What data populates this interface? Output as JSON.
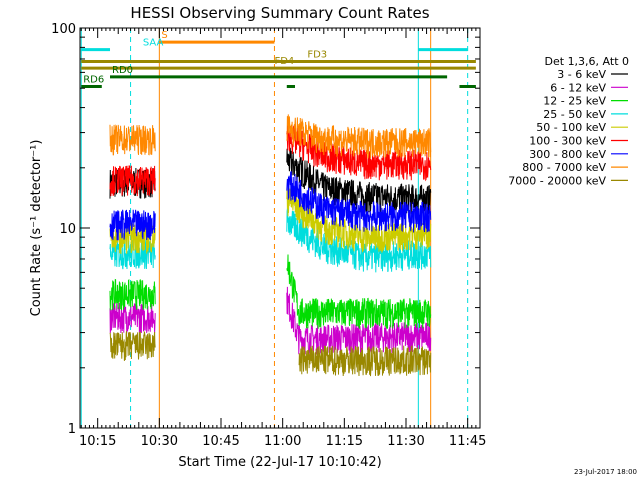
{
  "chart_data": {
    "type": "line",
    "title": "HESSI Observing Summary Count Rates",
    "xlabel": "Start Time (22-Jul-17 10:10:42)",
    "ylabel": "Count Rate (s⁻¹ detector⁻¹)",
    "yscale": "log",
    "ylim": [
      1,
      100
    ],
    "xlim": [
      "10:10:42",
      "11:48:00"
    ],
    "x_ticks": [
      "10:15",
      "10:30",
      "10:45",
      "11:00",
      "11:15",
      "11:30",
      "11:45"
    ],
    "y_ticks": [
      "1",
      "10",
      "100"
    ],
    "legend_title": "Det 1,3,6, Att 0",
    "legend_position": "right",
    "footer": "23-Jul-2017 18:00",
    "data_gaps": [
      [
        "10:11",
        "10:18"
      ],
      [
        "10:29",
        "11:01"
      ],
      [
        "11:36",
        "11:48"
      ]
    ],
    "series": [
      {
        "name": "3 - 6 keV",
        "color": "#000000",
        "segments": [
          {
            "x": [
              "10:18",
              "10:29"
            ],
            "y": [
              17,
              17
            ]
          },
          {
            "x": [
              "11:01",
              "11:10",
              "11:20",
              "11:36"
            ],
            "y": [
              22,
              16,
              14.5,
              14
            ]
          }
        ]
      },
      {
        "name": "6 - 12 keV",
        "color": "#cc00cc",
        "segments": [
          {
            "x": [
              "10:18",
              "10:29"
            ],
            "y": [
              3.6,
              3.6
            ]
          },
          {
            "x": [
              "11:01",
              "11:04",
              "11:36"
            ],
            "y": [
              4.5,
              2.8,
              2.9
            ]
          }
        ]
      },
      {
        "name": "12 - 25 keV",
        "color": "#00dd00",
        "segments": [
          {
            "x": [
              "10:18",
              "10:29"
            ],
            "y": [
              4.7,
              4.7
            ]
          },
          {
            "x": [
              "11:01",
              "11:04",
              "11:36"
            ],
            "y": [
              7,
              3.8,
              3.8
            ]
          }
        ]
      },
      {
        "name": "25 - 50 keV",
        "color": "#00dddd",
        "segments": [
          {
            "x": [
              "10:18",
              "10:29"
            ],
            "y": [
              7.5,
              7.5
            ]
          },
          {
            "x": [
              "11:01",
              "11:10",
              "11:20",
              "11:36"
            ],
            "y": [
              11,
              8,
              7.2,
              7.5
            ]
          }
        ]
      },
      {
        "name": "50 - 100 keV",
        "color": "#cccc00",
        "segments": [
          {
            "x": [
              "10:18",
              "10:29"
            ],
            "y": [
              9,
              9
            ]
          },
          {
            "x": [
              "11:01",
              "11:10",
              "11:20",
              "11:36"
            ],
            "y": [
              14,
              10,
              9,
              9.5
            ]
          }
        ]
      },
      {
        "name": "100 - 300 keV",
        "color": "#ff0000",
        "segments": [
          {
            "x": [
              "10:18",
              "10:29"
            ],
            "y": [
              17.5,
              17.5
            ]
          },
          {
            "x": [
              "11:01",
              "11:10",
              "11:20",
              "11:36"
            ],
            "y": [
              29,
              23,
              21,
              21
            ]
          }
        ]
      },
      {
        "name": "300 - 800 keV",
        "color": "#0000ff",
        "segments": [
          {
            "x": [
              "10:18",
              "10:29"
            ],
            "y": [
              10.5,
              10.5
            ]
          },
          {
            "x": [
              "11:01",
              "11:10",
              "11:20",
              "11:36"
            ],
            "y": [
              17,
              12.5,
              11.5,
              11.5
            ]
          }
        ]
      },
      {
        "name": "800 - 7000 keV",
        "color": "#ff8800",
        "segments": [
          {
            "x": [
              "10:18",
              "10:29"
            ],
            "y": [
              28,
              28
            ]
          },
          {
            "x": [
              "11:01",
              "11:10",
              "11:20",
              "11:36"
            ],
            "y": [
              32,
              28,
              27,
              27
            ]
          }
        ]
      },
      {
        "name": "7000 - 20000 keV",
        "color": "#998800",
        "segments": [
          {
            "x": [
              "10:18",
              "10:29"
            ],
            "y": [
              2.6,
              2.6
            ]
          },
          {
            "x": [
              "11:04",
              "11:36"
            ],
            "y": [
              2.2,
              2.2
            ]
          }
        ]
      }
    ],
    "flag_bars": [
      {
        "label": "S",
        "color": "#ff8800",
        "x": [
          "10:30",
          "10:58"
        ],
        "y": 85
      },
      {
        "label": "",
        "color": "#00dddd",
        "x": [
          "10:11",
          "10:18"
        ],
        "y": 78
      },
      {
        "label": "",
        "color": "#00dddd",
        "x": [
          "11:33",
          "11:45"
        ],
        "y": 78
      },
      {
        "label": "",
        "color": "#998800",
        "x": [
          "10:11",
          "11:47"
        ],
        "y": 68
      },
      {
        "label": "",
        "color": "#998800",
        "x": [
          "10:11",
          "11:47"
        ],
        "y": 63
      },
      {
        "label": "RD0",
        "color": "#006600",
        "x": [
          "10:18",
          "11:40"
        ],
        "y": 57
      },
      {
        "label": "RD6",
        "color": "#006600",
        "x": [
          "10:11",
          "10:16"
        ],
        "y": 51
      },
      {
        "label": "",
        "color": "#006600",
        "x": [
          "11:43",
          "11:47"
        ],
        "y": 51
      },
      {
        "label": "",
        "color": "#006600",
        "x": [
          "11:01",
          "11:03"
        ],
        "y": 51
      }
    ],
    "bar_labels": [
      {
        "text": "SAA",
        "color": "#00dddd",
        "x": "10:26",
        "y": 78
      },
      {
        "text": "FD3",
        "color": "#998800",
        "x": "11:06",
        "y": 68
      },
      {
        "text": "FD4",
        "color": "#998800",
        "x": "10:58",
        "y": 63
      }
    ],
    "vertical_markers": [
      {
        "x": "10:11",
        "color": "#00dddd",
        "style": "solid"
      },
      {
        "x": "10:23",
        "color": "#00dddd",
        "style": "dashed"
      },
      {
        "x": "10:30",
        "color": "#ff8800",
        "style": "solid"
      },
      {
        "x": "10:58",
        "color": "#ff8800",
        "style": "dashed"
      },
      {
        "x": "11:33",
        "color": "#00dddd",
        "style": "solid"
      },
      {
        "x": "11:36",
        "color": "#ff8800",
        "style": "solid"
      },
      {
        "x": "11:45",
        "color": "#00dddd",
        "style": "dashed"
      }
    ]
  }
}
